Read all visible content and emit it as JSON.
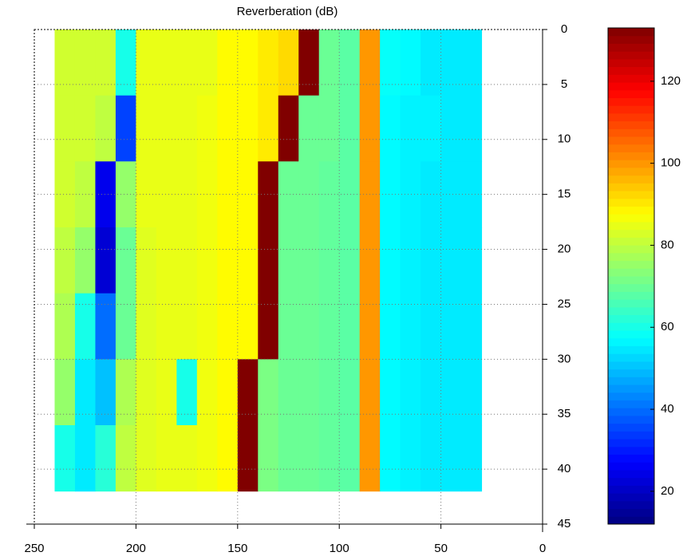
{
  "chart_data": {
    "type": "heatmap",
    "title": "Reverberation (dB)",
    "x_edges": [
      240,
      230,
      220,
      210,
      200,
      190,
      180,
      170,
      160,
      150,
      140,
      130,
      120,
      110,
      100,
      90,
      80,
      70,
      60,
      50,
      40,
      30
    ],
    "y_edges": [
      0,
      6,
      12,
      18,
      24,
      30,
      36,
      42
    ],
    "values": [
      [
        82,
        82,
        82,
        60,
        85,
        85,
        85,
        85,
        88,
        88,
        90,
        92,
        133,
        70,
        68,
        100,
        58,
        57,
        55,
        55,
        55
      ],
      [
        82,
        82,
        80,
        35,
        85,
        85,
        85,
        86,
        88,
        88,
        90,
        133,
        70,
        70,
        68,
        100,
        57,
        56,
        56,
        55,
        55
      ],
      [
        82,
        80,
        25,
        75,
        85,
        85,
        85,
        86,
        88,
        88,
        133,
        70,
        70,
        69,
        68,
        100,
        57,
        56,
        55,
        55,
        55
      ],
      [
        80,
        75,
        22,
        70,
        84,
        85,
        85,
        86,
        88,
        88,
        133,
        70,
        70,
        69,
        68,
        100,
        57,
        56,
        55,
        55,
        55
      ],
      [
        78,
        60,
        40,
        70,
        84,
        85,
        85,
        86,
        88,
        88,
        133,
        70,
        70,
        69,
        68,
        100,
        57,
        56,
        55,
        55,
        55
      ],
      [
        75,
        55,
        50,
        78,
        84,
        85,
        60,
        86,
        88,
        133,
        72,
        70,
        70,
        69,
        68,
        100,
        57,
        56,
        55,
        55,
        55
      ],
      [
        60,
        55,
        62,
        80,
        84,
        85,
        85,
        86,
        88,
        133,
        72,
        70,
        70,
        69,
        68,
        100,
        57,
        56,
        55,
        55,
        55
      ]
    ],
    "xlim": [
      250,
      0
    ],
    "xticks": [
      250,
      200,
      150,
      100,
      50,
      0
    ],
    "ylim": [
      0,
      45
    ],
    "yticks": [
      0,
      5,
      10,
      15,
      20,
      25,
      30,
      35,
      40,
      45
    ],
    "clim": [
      12,
      133
    ],
    "cticks": [
      20,
      40,
      60,
      80,
      100,
      120
    ],
    "colormap": "jet",
    "grid": true
  }
}
